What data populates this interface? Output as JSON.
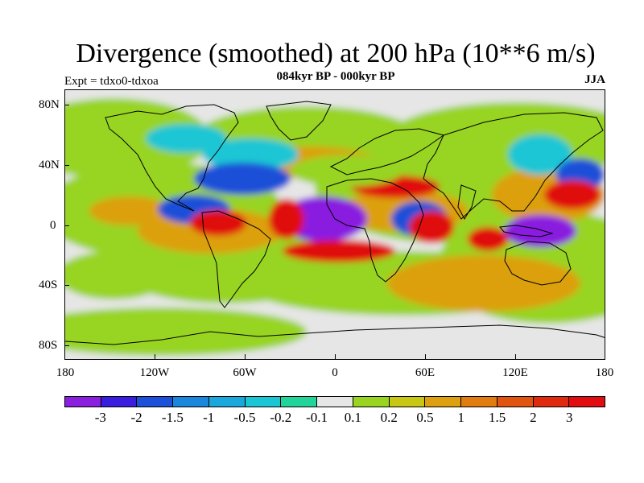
{
  "title": "Divergence (smoothed) at 200 hPa (10**6 m/s)",
  "subtitle": "084kyr BP - 000kyr BP",
  "experiment": "Expt = tdxo0-tdxoa",
  "season": "JJA",
  "lat_labels": [
    "80N",
    "40N",
    "0",
    "40S",
    "80S"
  ],
  "lon_labels": [
    "180",
    "120W",
    "60W",
    "0",
    "60E",
    "120E",
    "180"
  ],
  "colorbar": {
    "colors": [
      "#8a1fe0",
      "#3a1ee0",
      "#1c50d8",
      "#1a86dc",
      "#1aa8dc",
      "#1ac6d4",
      "#20d49a",
      "#e6e6e6",
      "#98d420",
      "#c8c814",
      "#dca010",
      "#e07c10",
      "#e05410",
      "#e02a10",
      "#e00c10"
    ],
    "labels": [
      "-3",
      "-2",
      "-1.5",
      "-1",
      "-0.5",
      "-0.2",
      "-0.1",
      "0.1",
      "0.2",
      "0.5",
      "1",
      "1.5",
      "2",
      "3"
    ]
  },
  "palette": {
    "neg_strong": "#8a1fe0",
    "neg_med": "#1c50d8",
    "neg_weak": "#1ac6d4",
    "pos_weak": "#98d420",
    "pos_med": "#dca010",
    "pos_strong": "#e00c10",
    "neutral": "#e6e6e6"
  }
}
